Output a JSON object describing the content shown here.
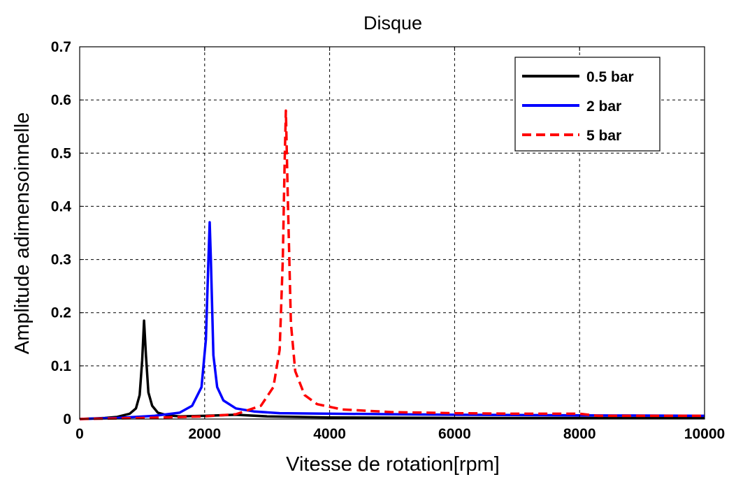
{
  "chart_data": {
    "type": "line",
    "title": "Disque",
    "xlabel": "Vitesse de rotation[rpm]",
    "ylabel": "Amplitude adimensoinnelle",
    "xlim": [
      0,
      10000
    ],
    "ylim": [
      0,
      0.7
    ],
    "xticks": [
      "0",
      "2000",
      "4000",
      "6000",
      "8000",
      "10000"
    ],
    "yticks": [
      "0",
      "0.1",
      "0.2",
      "0.3",
      "0.4",
      "0.5",
      "0.6",
      "0.7"
    ],
    "grid": true,
    "legend_position": "top-right",
    "series": [
      {
        "name": "0.5 bar",
        "color": "#000000",
        "style": "solid",
        "x": [
          0,
          400,
          600,
          800,
          900,
          960,
          1000,
          1030,
          1060,
          1100,
          1160,
          1250,
          1400,
          1600,
          2000,
          2500,
          3000,
          4000,
          6000,
          8000,
          10000
        ],
        "y": [
          0.0,
          0.002,
          0.004,
          0.01,
          0.02,
          0.045,
          0.11,
          0.185,
          0.12,
          0.05,
          0.025,
          0.012,
          0.007,
          0.005,
          0.006,
          0.008,
          0.005,
          0.003,
          0.002,
          0.002,
          0.002
        ]
      },
      {
        "name": "2 bar",
        "color": "#0000ff",
        "style": "solid",
        "x": [
          0,
          600,
          1200,
          1600,
          1800,
          1950,
          2020,
          2060,
          2080,
          2100,
          2140,
          2200,
          2300,
          2500,
          2800,
          3200,
          4000,
          5000,
          6000,
          8000,
          10000
        ],
        "y": [
          0.0,
          0.002,
          0.006,
          0.012,
          0.025,
          0.06,
          0.15,
          0.3,
          0.37,
          0.3,
          0.12,
          0.06,
          0.035,
          0.02,
          0.014,
          0.011,
          0.01,
          0.009,
          0.008,
          0.007,
          0.006
        ]
      },
      {
        "name": "5 bar",
        "color": "#ff0000",
        "style": "dashed",
        "x": [
          0,
          1000,
          2000,
          2500,
          2900,
          3100,
          3200,
          3250,
          3280,
          3300,
          3330,
          3380,
          3450,
          3600,
          3800,
          4200,
          5000,
          6000,
          7000,
          8000,
          8300,
          10000
        ],
        "y": [
          0.0,
          0.002,
          0.005,
          0.009,
          0.025,
          0.06,
          0.13,
          0.3,
          0.48,
          0.58,
          0.42,
          0.18,
          0.09,
          0.045,
          0.028,
          0.018,
          0.013,
          0.011,
          0.01,
          0.01,
          0.006,
          0.006
        ]
      }
    ]
  }
}
